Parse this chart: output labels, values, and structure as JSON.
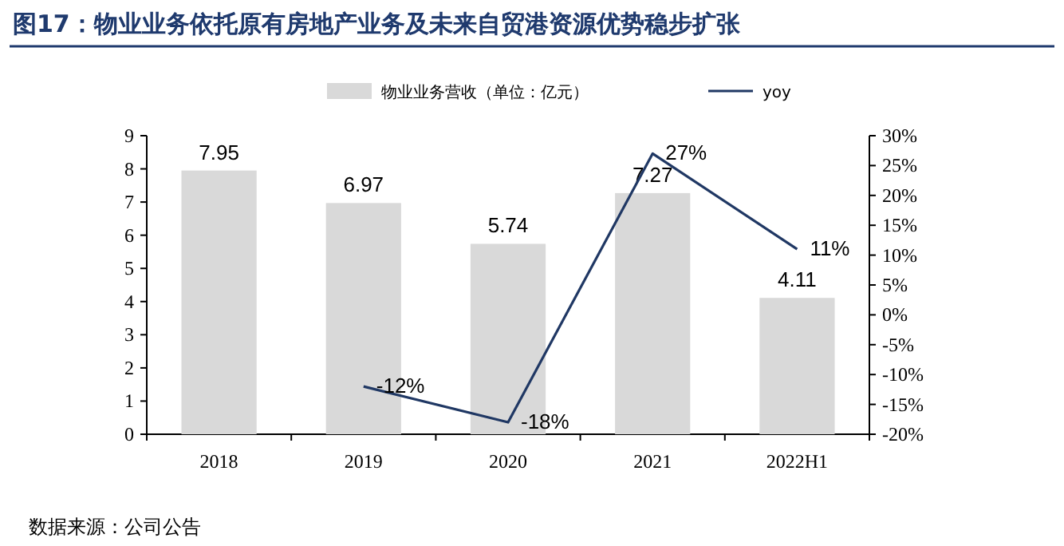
{
  "chart_data": {
    "type": "bar",
    "title": "图17：物业业务依托原有房地产业务及未来自贸港资源优势稳步扩张",
    "categories": [
      "2018",
      "2019",
      "2020",
      "2021",
      "2022H1"
    ],
    "series": [
      {
        "name": "物业业务营收（单位：亿元）",
        "color": "#d9d9d9",
        "values": [
          7.95,
          6.97,
          5.74,
          7.27,
          4.11
        ]
      },
      {
        "name": "yoy",
        "type": "line",
        "axis": "y2",
        "color": "#203864",
        "values": [
          null,
          -12,
          -18,
          27,
          11
        ]
      }
    ],
    "ylim": [
      0,
      9
    ],
    "yticks": [
      0,
      1,
      2,
      3,
      4,
      5,
      6,
      7,
      8,
      9
    ],
    "y2lim": [
      -20,
      30
    ],
    "y2ticks": [
      {
        "value": -20,
        "label": "-20%"
      },
      {
        "value": -15,
        "label": "-15%"
      },
      {
        "value": -10,
        "label": "-10%"
      },
      {
        "value": -5,
        "label": "-5%"
      },
      {
        "value": 0,
        "label": "0%"
      },
      {
        "value": 5,
        "label": "5%"
      },
      {
        "value": 10,
        "label": "10%"
      },
      {
        "value": 15,
        "label": "15%"
      },
      {
        "value": 20,
        "label": "20%"
      },
      {
        "value": 25,
        "label": "25%"
      },
      {
        "value": 30,
        "label": "30%"
      }
    ],
    "value_labels": [
      [
        "7.95",
        "6.97",
        "5.74",
        "7.27",
        "4.11"
      ],
      [
        null,
        "-12%",
        "-18%",
        "27%",
        "11%"
      ]
    ],
    "legend": "top",
    "grid": false,
    "annotations": [
      "数据来源：公司公告"
    ]
  }
}
